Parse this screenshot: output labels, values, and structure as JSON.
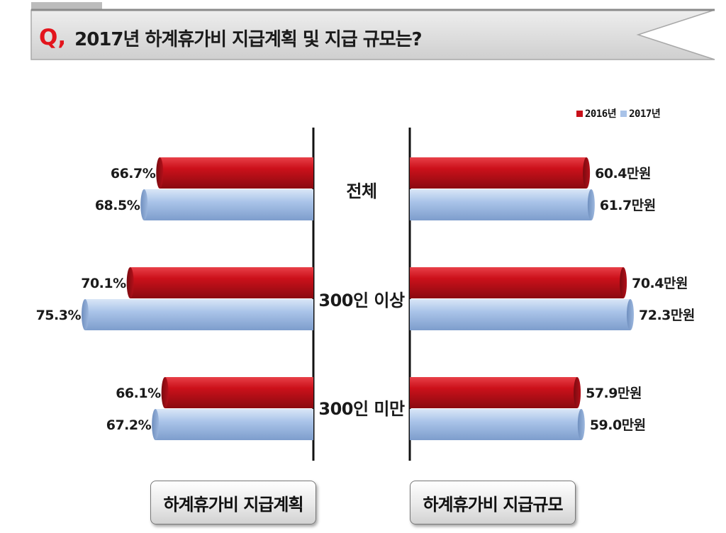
{
  "title": {
    "prefix": "Q,",
    "text": "2017년 하계휴가비 지급계획 및 지급  규모는?"
  },
  "colors": {
    "series_2016": "#c8101a",
    "series_2017": "#a9c3e8",
    "banner": "#d8d8d8",
    "q_mark": "#e3141c"
  },
  "chart_data": [
    {
      "type": "bar",
      "orientation": "horizontal",
      "direction": "right-to-left",
      "panel_label": "하계휴가비 지급계획",
      "categories": [
        "전체",
        "300인 이상",
        "300인 미만"
      ],
      "unit": "%",
      "series": [
        {
          "name": "2016년",
          "values": [
            66.7,
            70.1,
            66.1
          ],
          "labels": [
            "66.7%",
            "70.1%",
            "66.1%"
          ]
        },
        {
          "name": "2017년",
          "values": [
            68.5,
            75.3,
            67.2
          ],
          "labels": [
            "68.5%",
            "75.3%",
            "67.2%"
          ]
        }
      ]
    },
    {
      "type": "bar",
      "orientation": "horizontal",
      "direction": "left-to-right",
      "panel_label": "하계휴가비 지급규모",
      "categories": [
        "전체",
        "300인 이상",
        "300인 미만"
      ],
      "unit": "만원",
      "series": [
        {
          "name": "2016년",
          "values": [
            60.4,
            70.4,
            57.9
          ],
          "labels": [
            "60.4만원",
            "70.4만원",
            "57.9만원"
          ]
        },
        {
          "name": "2017년",
          "values": [
            61.7,
            72.3,
            59.0
          ],
          "labels": [
            "61.7만원",
            "72.3만원",
            "59.0만원"
          ]
        }
      ]
    }
  ],
  "legend": [
    "2016년",
    "2017년"
  ]
}
